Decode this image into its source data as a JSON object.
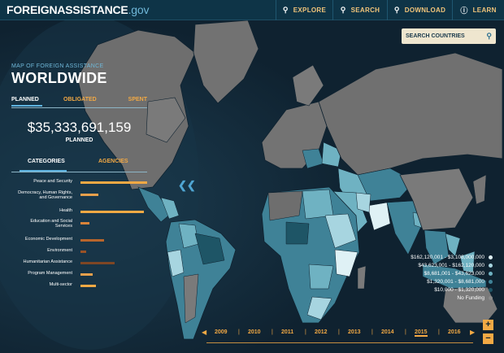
{
  "header": {
    "brand_main": "FOREIGNASSISTANCE",
    "brand_suffix": ".gov",
    "nav": [
      {
        "label": "EXPLORE",
        "icon": "map-pin-icon"
      },
      {
        "label": "SEARCH",
        "icon": "search-icon"
      },
      {
        "label": "DOWNLOAD",
        "icon": "map-pin-icon"
      },
      {
        "label": "LEARN",
        "icon": "info-icon"
      }
    ]
  },
  "search": {
    "placeholder": "SEARCH COUNTRIES"
  },
  "panel": {
    "subtitle": "MAP OF FOREIGN ASSISTANCE",
    "title": "WORLDWIDE",
    "status_tabs": [
      "PLANNED",
      "OBLIGATED",
      "SPENT"
    ],
    "amount": "$35,333,691,159",
    "amount_label": "PLANNED",
    "view_tabs": [
      "CATEGORIES",
      "AGENCIES"
    ],
    "categories": [
      {
        "label": "Peace and Security",
        "share": 0.82,
        "color": "#f2a944"
      },
      {
        "label": "Democracy, Human Rights,\nand Governance",
        "share": 0.22,
        "color": "#e8a04c"
      },
      {
        "label": "Health",
        "share": 0.78,
        "color": "#f2a944"
      },
      {
        "label": "Education and Social\nServices",
        "share": 0.11,
        "color": "#d9833a"
      },
      {
        "label": "Economic Development",
        "share": 0.29,
        "color": "#b8652c"
      },
      {
        "label": "Environment",
        "share": 0.07,
        "color": "#9a5226"
      },
      {
        "label": "Humanitarian Assistance",
        "share": 0.42,
        "color": "#7e4624"
      },
      {
        "label": "Program Management",
        "share": 0.15,
        "color": "#e8a04c"
      },
      {
        "label": "Multi-sector",
        "share": 0.19,
        "color": "#f2a944"
      }
    ]
  },
  "legend": [
    {
      "label": "$162,120,001 - $3,108,000,000",
      "color": "#dff1f5"
    },
    {
      "label": "$43,623,001 - $162,120,000",
      "color": "#a7d5e0"
    },
    {
      "label": "$8,681,001 - $43,623,000",
      "color": "#6fb2c2"
    },
    {
      "label": "$1,320,001 - $8,681,000",
      "color": "#3f8297"
    },
    {
      "label": "$10,000 - $1,320,000",
      "color": "#1e5566"
    },
    {
      "label": "No Funding",
      "color": "#8a8a8a"
    }
  ],
  "timeline": {
    "years": [
      "2009",
      "2010",
      "2011",
      "2012",
      "2013",
      "2014",
      "2015",
      "2016"
    ],
    "selected": "2015"
  },
  "colors": {
    "accent": "#f2a944",
    "background": "#0f2230",
    "topbar": "#0e3447",
    "no_funding": "#8a8a8a"
  }
}
